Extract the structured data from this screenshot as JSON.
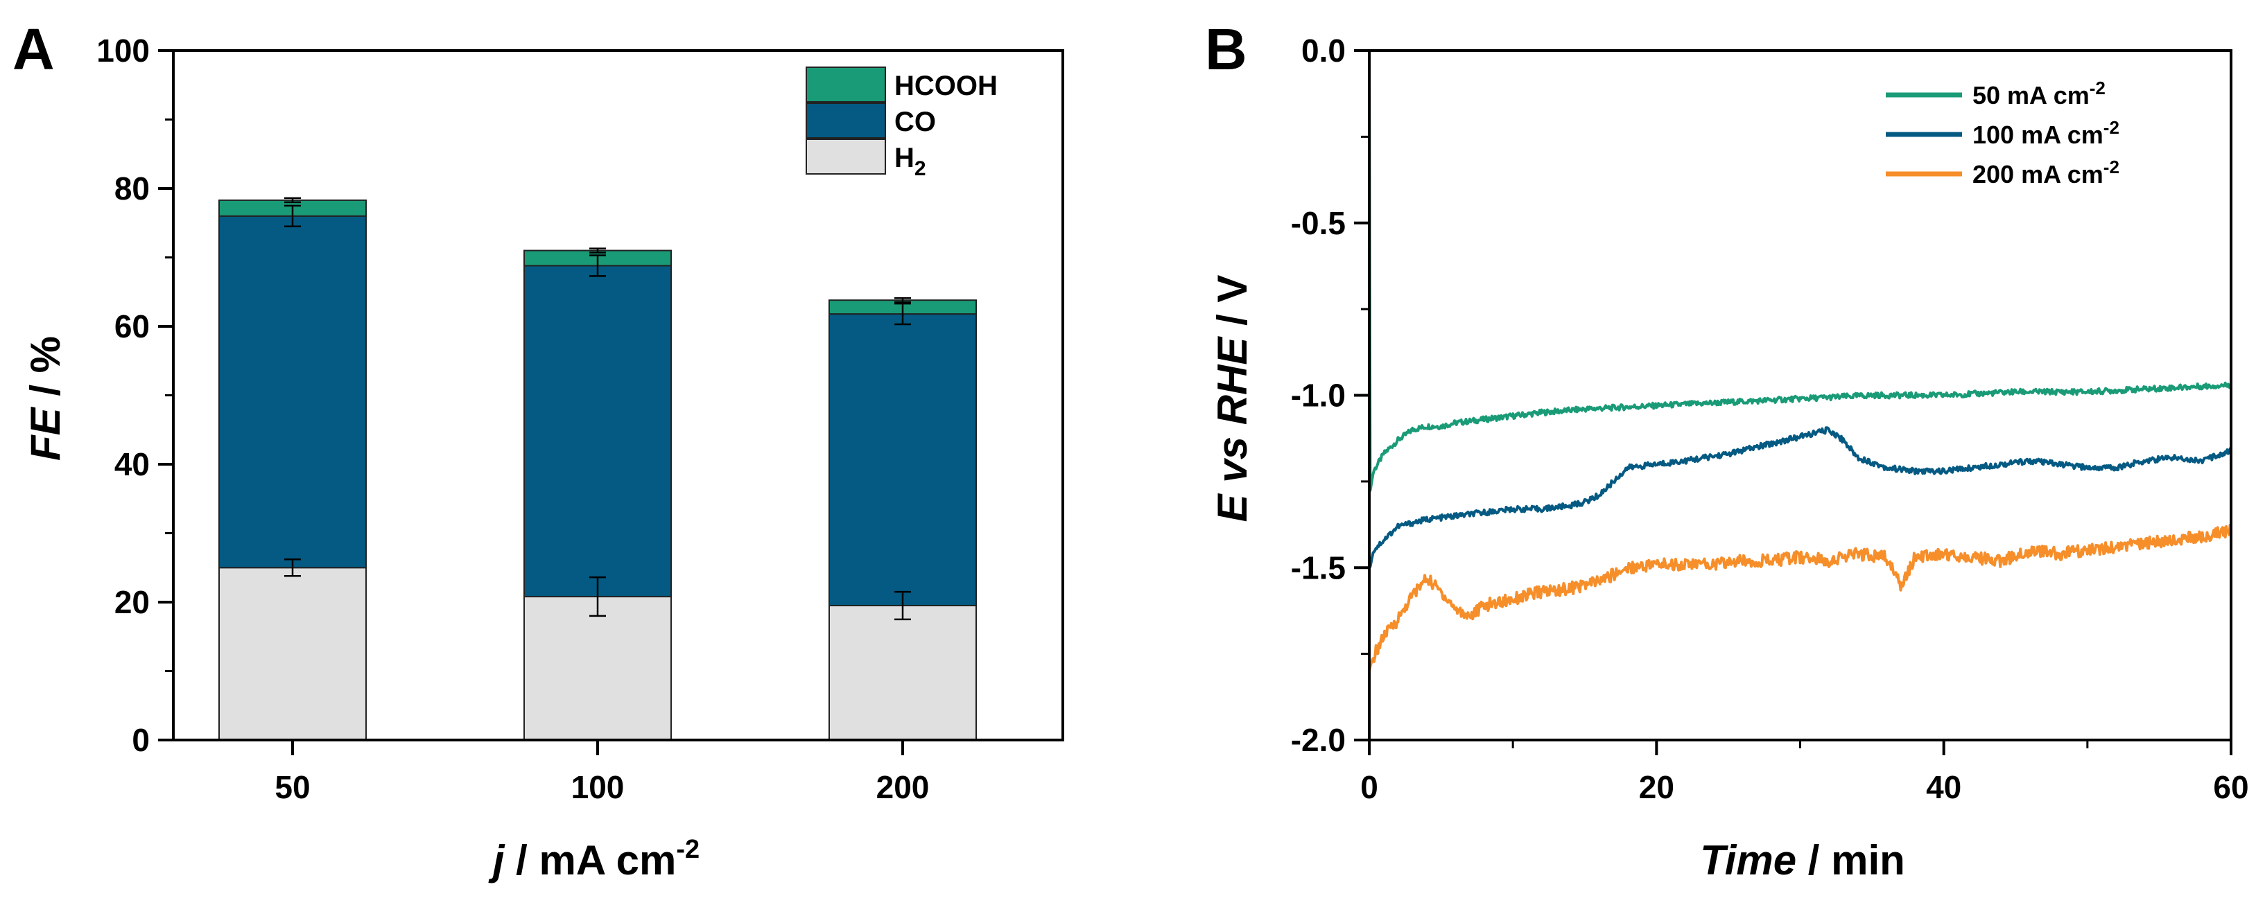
{
  "panels": {
    "a": {
      "letter": "A"
    },
    "b": {
      "letter": "B"
    }
  },
  "chart_data": [
    {
      "type": "bar",
      "stacked": true,
      "panel": "A",
      "categories": [
        "50",
        "100",
        "200"
      ],
      "series": [
        {
          "name": "H2",
          "label_main": "H",
          "label_sub": "2",
          "color": "#e0e0e0",
          "values": [
            25,
            20.8,
            19.5
          ],
          "errors": [
            1.2,
            2.8,
            2.0
          ]
        },
        {
          "name": "CO",
          "label_main": "CO",
          "label_sub": "",
          "color": "#045a82",
          "values": [
            51,
            48,
            42.3
          ],
          "errors": [
            1.5,
            1.5,
            1.5
          ]
        },
        {
          "name": "HCOOH",
          "label_main": "HCOOH",
          "label_sub": "",
          "color": "#1a9b77",
          "values": [
            2.3,
            2.2,
            2.0
          ],
          "errors": [
            0.3,
            0.3,
            0.3
          ]
        }
      ],
      "ylim": [
        0,
        100
      ],
      "yticks": [
        0,
        20,
        40,
        60,
        80,
        100
      ],
      "ylabel_main": "FE",
      "ylabel_rest": " / %",
      "xlabel_main": "j",
      "xlabel_rest": " / mA cm",
      "xlabel_sup": "-2",
      "legend_position": "top-right"
    },
    {
      "type": "line",
      "panel": "B",
      "xlim": [
        0,
        60
      ],
      "ylim": [
        -2.0,
        0.0
      ],
      "xticks": [
        0,
        20,
        40,
        60
      ],
      "yticks": [
        0.0,
        -0.5,
        -1.0,
        -1.5,
        -2.0
      ],
      "ytick_labels": [
        "0.0",
        "-0.5",
        "-1.0",
        "-1.5",
        "-2.0"
      ],
      "xlabel_main": "Time",
      "xlabel_rest": " / min",
      "ylabel_main": "E",
      "ylabel_mid": " vs ",
      "ylabel_main2": "RHE",
      "ylabel_rest": " / V",
      "legend_position": "top-right",
      "series": [
        {
          "name": "50 mA cm-2",
          "label_main": "50 mA cm",
          "label_sup": "-2",
          "color": "#1a9b77",
          "x": [
            0,
            0.05,
            0.3,
            1,
            2,
            3,
            4,
            5,
            6,
            8,
            10,
            12,
            15,
            20,
            25,
            30,
            35,
            40,
            45,
            50,
            55,
            60
          ],
          "y": [
            0.0,
            -1.28,
            -1.22,
            -1.17,
            -1.13,
            -1.1,
            -1.09,
            -1.09,
            -1.08,
            -1.07,
            -1.06,
            -1.05,
            -1.04,
            -1.03,
            -1.02,
            -1.01,
            -1.0,
            -1.0,
            -0.99,
            -0.99,
            -0.98,
            -0.97
          ]
        },
        {
          "name": "100 mA cm-2",
          "label_main": "100 mA cm",
          "label_sup": "-2",
          "color": "#045a82",
          "x": [
            0,
            0.05,
            0.3,
            1,
            2,
            4,
            6,
            8,
            10,
            12,
            14,
            15,
            16,
            17,
            18,
            20,
            22,
            25,
            28,
            30,
            32,
            33,
            34,
            36,
            38,
            40,
            42,
            44,
            46,
            48,
            50,
            52,
            54,
            56,
            58,
            60
          ],
          "y": [
            -1.5,
            -1.5,
            -1.45,
            -1.42,
            -1.38,
            -1.36,
            -1.35,
            -1.34,
            -1.33,
            -1.33,
            -1.32,
            -1.31,
            -1.29,
            -1.25,
            -1.21,
            -1.2,
            -1.19,
            -1.17,
            -1.14,
            -1.12,
            -1.1,
            -1.13,
            -1.18,
            -1.21,
            -1.22,
            -1.22,
            -1.21,
            -1.2,
            -1.19,
            -1.2,
            -1.21,
            -1.21,
            -1.19,
            -1.18,
            -1.19,
            -1.16
          ]
        },
        {
          "name": "200 mA cm-2",
          "label_main": "200 mA cm",
          "label_sup": "-2",
          "color": "#f68e2a",
          "x": [
            0,
            0.1,
            0.5,
            1,
            2,
            3,
            4,
            5,
            6,
            7,
            8,
            10,
            12,
            14,
            16,
            17,
            18,
            20,
            22,
            24,
            26,
            28,
            30,
            32,
            34,
            36,
            37,
            38,
            40,
            42,
            44,
            46,
            48,
            50,
            52,
            54,
            56,
            58,
            60
          ],
          "y": [
            -1.8,
            -1.78,
            -1.74,
            -1.7,
            -1.65,
            -1.58,
            -1.53,
            -1.57,
            -1.62,
            -1.64,
            -1.61,
            -1.59,
            -1.57,
            -1.56,
            -1.54,
            -1.52,
            -1.5,
            -1.49,
            -1.49,
            -1.49,
            -1.48,
            -1.48,
            -1.47,
            -1.48,
            -1.46,
            -1.47,
            -1.55,
            -1.47,
            -1.46,
            -1.47,
            -1.48,
            -1.45,
            -1.46,
            -1.45,
            -1.44,
            -1.43,
            -1.42,
            -1.41,
            -1.39
          ]
        }
      ]
    }
  ]
}
